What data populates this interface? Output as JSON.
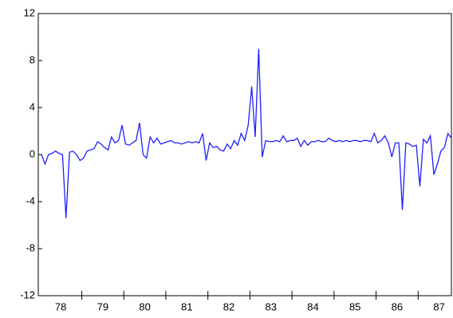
{
  "chart_data": {
    "type": "line",
    "categories": [
      null,
      null,
      null,
      null,
      null,
      null,
      "78",
      null,
      null,
      null,
      null,
      null,
      null,
      null,
      null,
      null,
      null,
      null,
      "79",
      null,
      null,
      null,
      null,
      null,
      null,
      null,
      null,
      null,
      null,
      null,
      "80",
      null,
      null,
      null,
      null,
      null,
      null,
      null,
      null,
      null,
      null,
      null,
      "81",
      null,
      null,
      null,
      null,
      null,
      null,
      null,
      null,
      null,
      null,
      null,
      "82",
      null,
      null,
      null,
      null,
      null,
      null,
      null,
      null,
      null,
      null,
      null,
      "83",
      null,
      null,
      null,
      null,
      null,
      null,
      null,
      null,
      null,
      null,
      null,
      "84",
      null,
      null,
      null,
      null,
      null,
      null,
      null,
      null,
      null,
      null,
      null,
      "85",
      null,
      null,
      null,
      null,
      null,
      null,
      null,
      null,
      null,
      null,
      null,
      "86",
      null,
      null,
      null,
      null,
      null,
      null,
      null,
      null,
      null,
      null,
      null,
      "87",
      null,
      null,
      null
    ],
    "series": [
      {
        "color": "#1f1fff",
        "values": [
          0,
          -0.8,
          0,
          0.1,
          0.3,
          0.1,
          0,
          -5.4,
          0.2,
          0.3,
          0,
          -0.5,
          -0.3,
          0.3,
          0.4,
          0.5,
          1.1,
          0.9,
          0.6,
          0.4,
          1.5,
          1.0,
          1.2,
          2.5,
          0.9,
          0.8,
          1.0,
          1.2,
          2.7,
          0,
          -0.3,
          1.5,
          1.0,
          1.4,
          0.9,
          1.0,
          1.1,
          1.2,
          1.0,
          1.0,
          0.9,
          1.0,
          1.1,
          1.0,
          1.1,
          1.0,
          1.8,
          -0.5,
          1.0,
          0.6,
          0.7,
          0.4,
          0.3,
          0.9,
          0.5,
          1.2,
          0.8,
          1.8,
          1.2,
          2.5,
          5.8,
          1.5,
          9.0,
          -0.2,
          1.2,
          1.1,
          1.1,
          1.2,
          1.1,
          1.6,
          1.1,
          1.2,
          1.2,
          1.4,
          0.7,
          1.2,
          0.8,
          1.1,
          1.1,
          1.2,
          1.1,
          1.1,
          1.4,
          1.2,
          1.1,
          1.2,
          1.1,
          1.2,
          1.1,
          1.2,
          1.2,
          1.1,
          1.2,
          1.2,
          1.1,
          1.8,
          1.0,
          1.2,
          1.6,
          1.0,
          -0.2,
          1.0,
          1.0,
          -4.7,
          1.0,
          0.9,
          0.7,
          0.8,
          -2.7,
          1.3,
          1.0,
          1.6,
          -1.7,
          -0.8,
          0.3,
          0.6,
          1.8,
          1.4
        ]
      }
    ],
    "ylim": [
      -12,
      12
    ],
    "yticks": [
      -12,
      -8,
      -4,
      0,
      4,
      8,
      12
    ]
  }
}
